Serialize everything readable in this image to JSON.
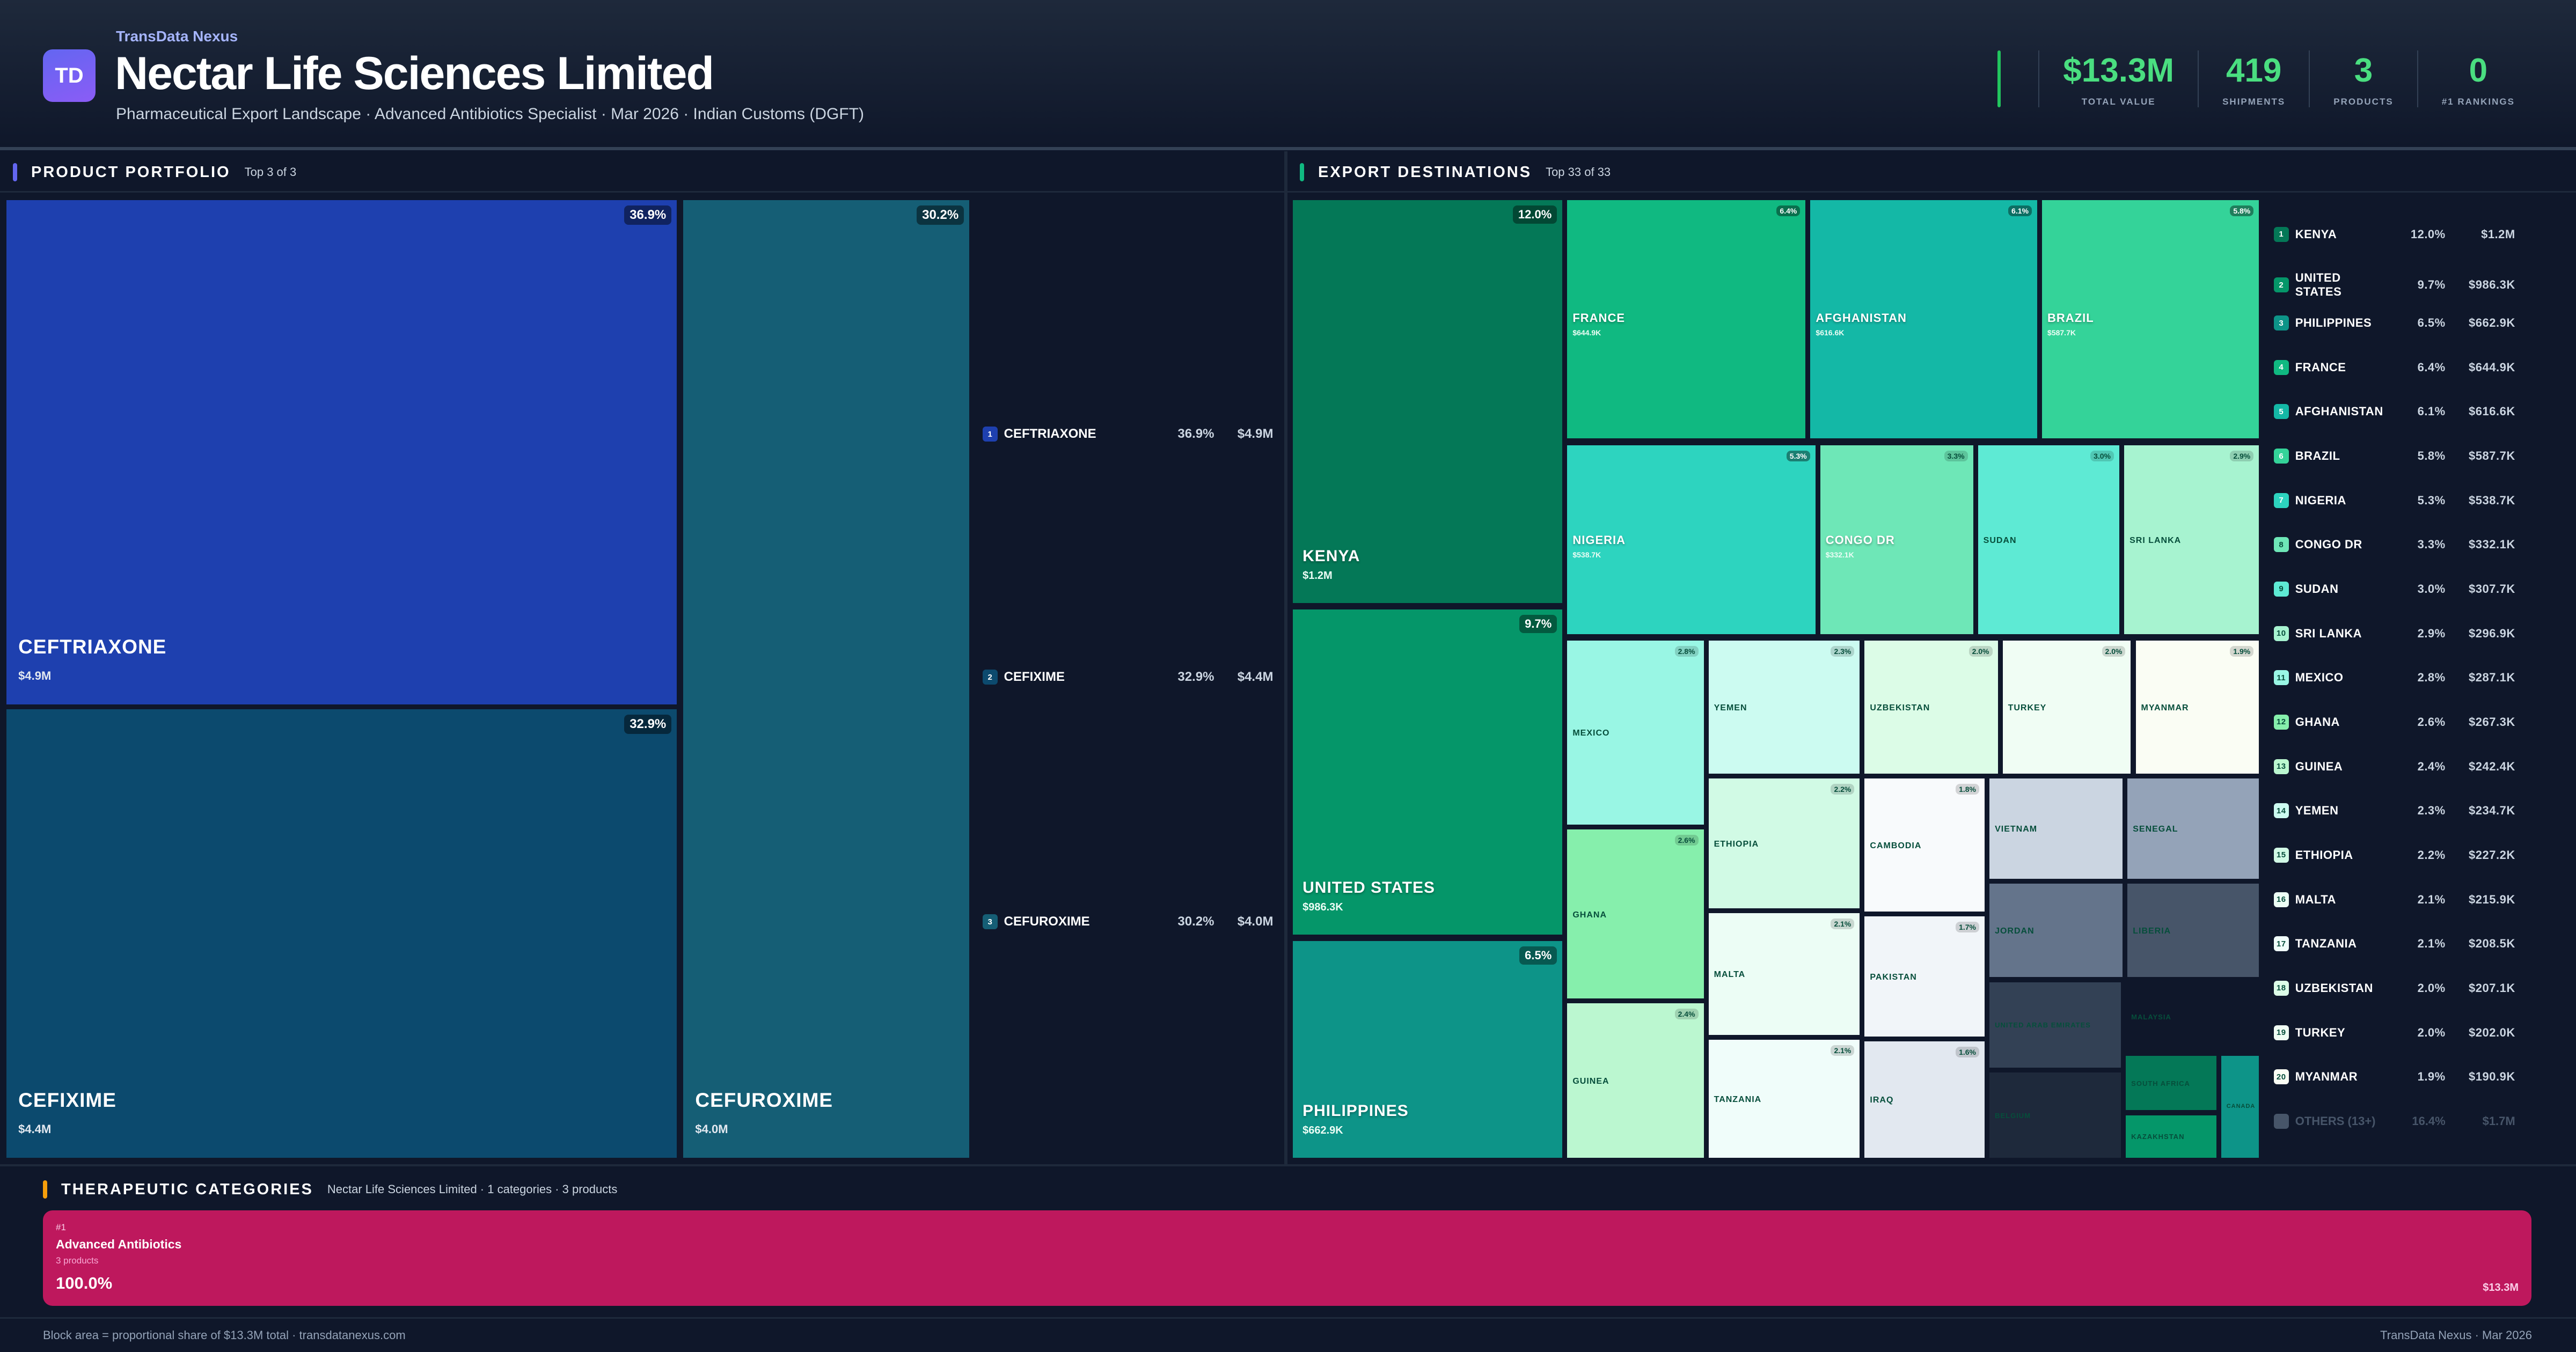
{
  "header": {
    "brand": "TransData Nexus",
    "logo": "TD",
    "title": "Nectar Life Sciences Limited",
    "subtitle": "Pharmaceutical Export Landscape · Advanced Antibiotics Specialist · Mar 2026 · Indian Customs (DGFT)"
  },
  "kpis": [
    {
      "value": "$13.3M",
      "label": "TOTAL VALUE"
    },
    {
      "value": "419",
      "label": "SHIPMENTS"
    },
    {
      "value": "3",
      "label": "PRODUCTS"
    },
    {
      "value": "0",
      "label": "#1 RANKINGS"
    }
  ],
  "portfolio": {
    "title": "PRODUCT PORTFOLIO",
    "subtitle": "Top 3 of 3",
    "accent": "#6366f1",
    "products": [
      {
        "rank": "1",
        "name": "CEFTRIAXONE",
        "pct": "36.9%",
        "value": "$4.9M",
        "color": "#1e40af"
      },
      {
        "rank": "2",
        "name": "CEFIXIME",
        "pct": "32.9%",
        "value": "$4.4M",
        "color": "#0c4a6e"
      },
      {
        "rank": "3",
        "name": "CEFUROXIME",
        "pct": "30.2%",
        "value": "$4.0M",
        "color": "#155e75"
      }
    ]
  },
  "destinations": {
    "title": "EXPORT DESTINATIONS",
    "subtitle": "Top 33 of 33",
    "accent": "#10b981",
    "items": [
      {
        "name": "KENYA",
        "pct": "12.0%",
        "value": "$1.2M",
        "color": "#047857"
      },
      {
        "name": "UNITED STATES",
        "pct": "9.7%",
        "value": "$986.3K",
        "color": "#059669"
      },
      {
        "name": "PHILIPPINES",
        "pct": "6.5%",
        "value": "$662.9K",
        "color": "#0d9488"
      },
      {
        "name": "FRANCE",
        "pct": "6.4%",
        "value": "$644.9K",
        "color": "#10b981"
      },
      {
        "name": "AFGHANISTAN",
        "pct": "6.1%",
        "value": "$616.6K",
        "color": "#14b8a6"
      },
      {
        "name": "BRAZIL",
        "pct": "5.8%",
        "value": "$587.7K",
        "color": "#34d399"
      },
      {
        "name": "NIGERIA",
        "pct": "5.3%",
        "value": "$538.7K",
        "color": "#2dd4bf"
      },
      {
        "name": "CONGO DR",
        "pct": "3.3%",
        "value": "$332.1K",
        "color": "#6ee7b7"
      },
      {
        "name": "SUDAN",
        "pct": "3.0%",
        "value": "$307.7K",
        "color": "#5eead4"
      },
      {
        "name": "SRI LANKA",
        "pct": "2.9%",
        "value": "$296.9K",
        "color": "#a7f3d0"
      },
      {
        "name": "MEXICO",
        "pct": "2.8%",
        "value": "$287.1K",
        "color": "#99f6e4"
      },
      {
        "name": "GHANA",
        "pct": "2.6%",
        "value": "$267.3K",
        "color": "#86efac"
      },
      {
        "name": "GUINEA",
        "pct": "2.4%",
        "value": "$242.4K",
        "color": "#bbf7d0"
      },
      {
        "name": "YEMEN",
        "pct": "2.3%",
        "value": "$234.7K",
        "color": "#ccfbf1"
      },
      {
        "name": "ETHIOPIA",
        "pct": "2.2%",
        "value": "$227.2K",
        "color": "#d1fae5"
      },
      {
        "name": "MALTA",
        "pct": "2.1%",
        "value": "$215.9K",
        "color": "#ecfdf5"
      },
      {
        "name": "TANZANIA",
        "pct": "2.1%",
        "value": "$208.5K",
        "color": "#f0fdfa"
      },
      {
        "name": "UZBEKISTAN",
        "pct": "2.0%",
        "value": "$207.1K",
        "color": "#dcfce7"
      },
      {
        "name": "TURKEY",
        "pct": "2.0%",
        "value": "$202.0K",
        "color": "#f0fdf4"
      },
      {
        "name": "MYANMAR",
        "pct": "1.9%",
        "value": "$190.9K",
        "color": "#fafdf4"
      },
      {
        "name": "CAMBODIA",
        "pct": "1.8%",
        "color": "#f8fafc"
      },
      {
        "name": "PAKISTAN",
        "pct": "1.7%",
        "color": "#f1f5f9"
      },
      {
        "name": "IRAQ",
        "pct": "1.6%",
        "color": "#e2e8f0"
      },
      {
        "name": "VIETNAM",
        "color": "#cbd5e1"
      },
      {
        "name": "SENEGAL",
        "color": "#94a3b8"
      },
      {
        "name": "JORDAN",
        "color": "#64748b"
      },
      {
        "name": "LIBERIA",
        "color": "#475569"
      },
      {
        "name": "UNITED ARAB EMIRATES",
        "color": "#334155"
      },
      {
        "name": "BELGIUM",
        "color": "#1e293b"
      },
      {
        "name": "MALAYSIA",
        "color": "#0f172a"
      },
      {
        "name": "SOUTH AFRICA",
        "color": "#047857"
      },
      {
        "name": "KAZAKHSTAN",
        "color": "#059669"
      },
      {
        "name": "CANADA",
        "color": "#0d9488"
      }
    ],
    "others": {
      "label": "OTHERS (13+)",
      "pct": "16.4%",
      "value": "$1.7M"
    }
  },
  "categories": {
    "title": "THERAPEUTIC CATEGORIES",
    "subtitle": "Nectar Life Sciences Limited · 1 categories · 3 products",
    "accent": "#f59e0b",
    "items": [
      {
        "rank": "#1",
        "name": "Advanced Antibiotics",
        "count": "3 products",
        "pct": "100.0%",
        "value": "$13.3M",
        "color": "#be185d"
      }
    ]
  },
  "footer": {
    "left": "Block area = proportional share of $13.3M total · transdatanexus.com",
    "right": "TransData Nexus · Mar 2026"
  }
}
